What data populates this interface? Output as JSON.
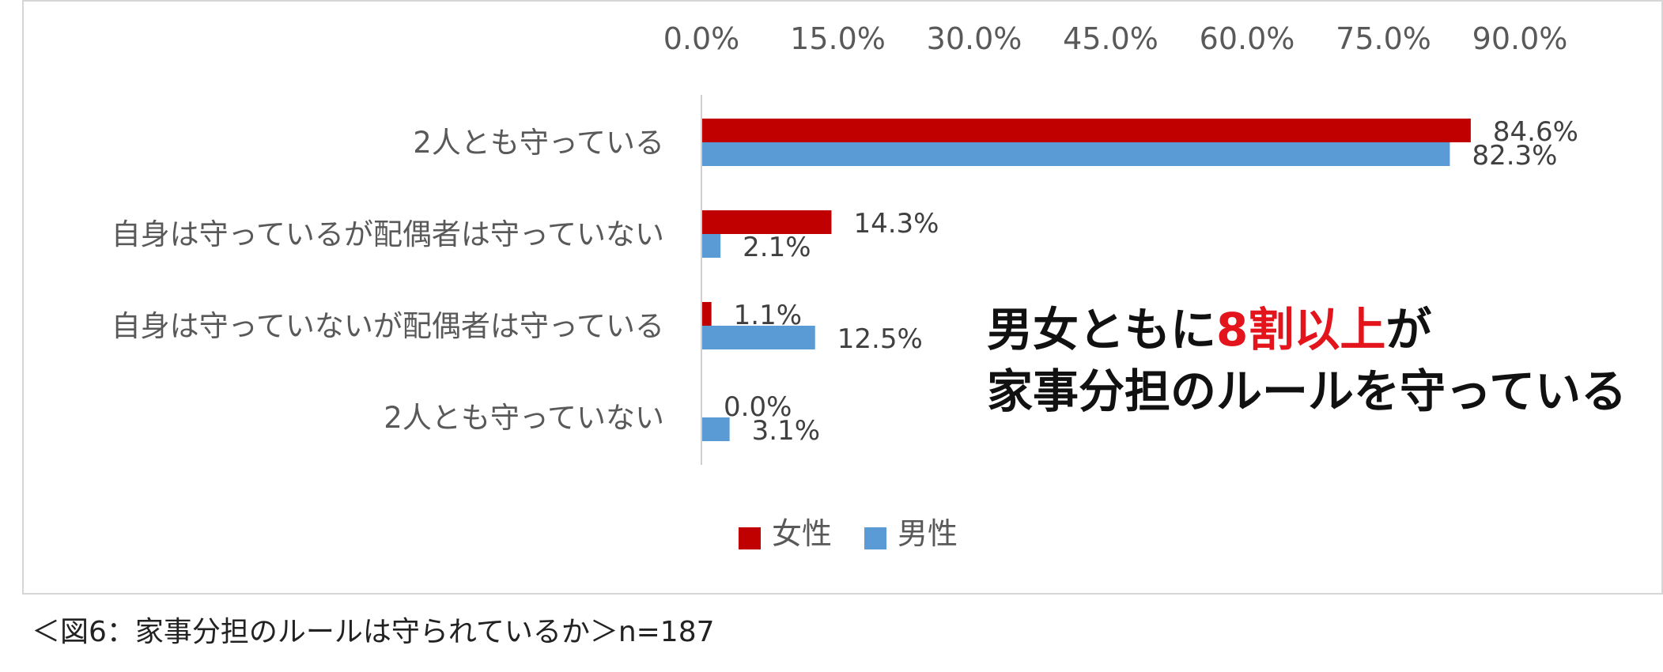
{
  "chart_data": {
    "type": "bar",
    "orientation": "horizontal",
    "categories": [
      "2人とも守っている",
      "自身は守っているが配偶者は守っていない",
      "自身は守っていないが配偶者は守っている",
      "2人とも守っていない"
    ],
    "series": [
      {
        "name": "女性",
        "color": "#c00000",
        "values": [
          84.6,
          14.3,
          1.1,
          0.0
        ],
        "labels": [
          "84.6%",
          "14.3%",
          "1.1%",
          "0.0%"
        ]
      },
      {
        "name": "男性",
        "color": "#5b9bd5",
        "values": [
          82.3,
          2.1,
          12.5,
          3.1
        ],
        "labels": [
          "82.3%",
          "2.1%",
          "12.5%",
          "3.1%"
        ]
      }
    ],
    "xlim": [
      0,
      90
    ],
    "xticks": [
      "0.0%",
      "15.0%",
      "30.0%",
      "45.0%",
      "60.0%",
      "75.0%",
      "90.0%"
    ],
    "axis_position": "top",
    "grid": false,
    "legend_position": "bottom"
  },
  "callout": {
    "line1_a": "男女ともに",
    "line1_b": "8割以上",
    "line1_c": "が",
    "line2": "家事分担のルールを守っている"
  },
  "caption": "＜図6：家事分担のルールは守られているか＞n=187"
}
